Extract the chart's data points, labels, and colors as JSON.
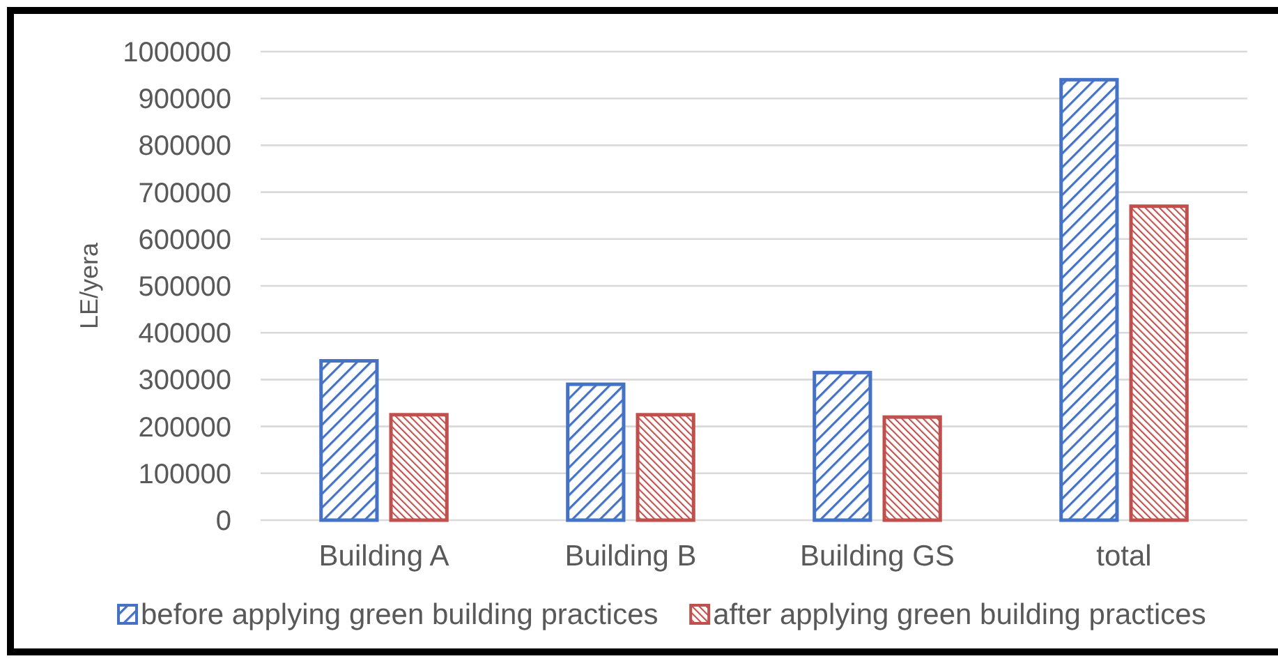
{
  "chart_data": {
    "type": "bar",
    "ylabel": "LE/yera",
    "categories": [
      "Building A",
      "Building B",
      "Building GS",
      "total"
    ],
    "series": [
      {
        "name": "before applying green building practices",
        "color": "#4472c4",
        "values": [
          340000,
          290000,
          315000,
          940000
        ]
      },
      {
        "name": "after applying green building practices",
        "color": "#c0504d",
        "values": [
          225000,
          225000,
          220000,
          670000
        ]
      }
    ],
    "ylim": [
      0,
      1000000
    ],
    "yticks": [
      0,
      100000,
      200000,
      300000,
      400000,
      500000,
      600000,
      700000,
      800000,
      900000,
      1000000
    ],
    "grid": "y",
    "legend": "bottom"
  }
}
